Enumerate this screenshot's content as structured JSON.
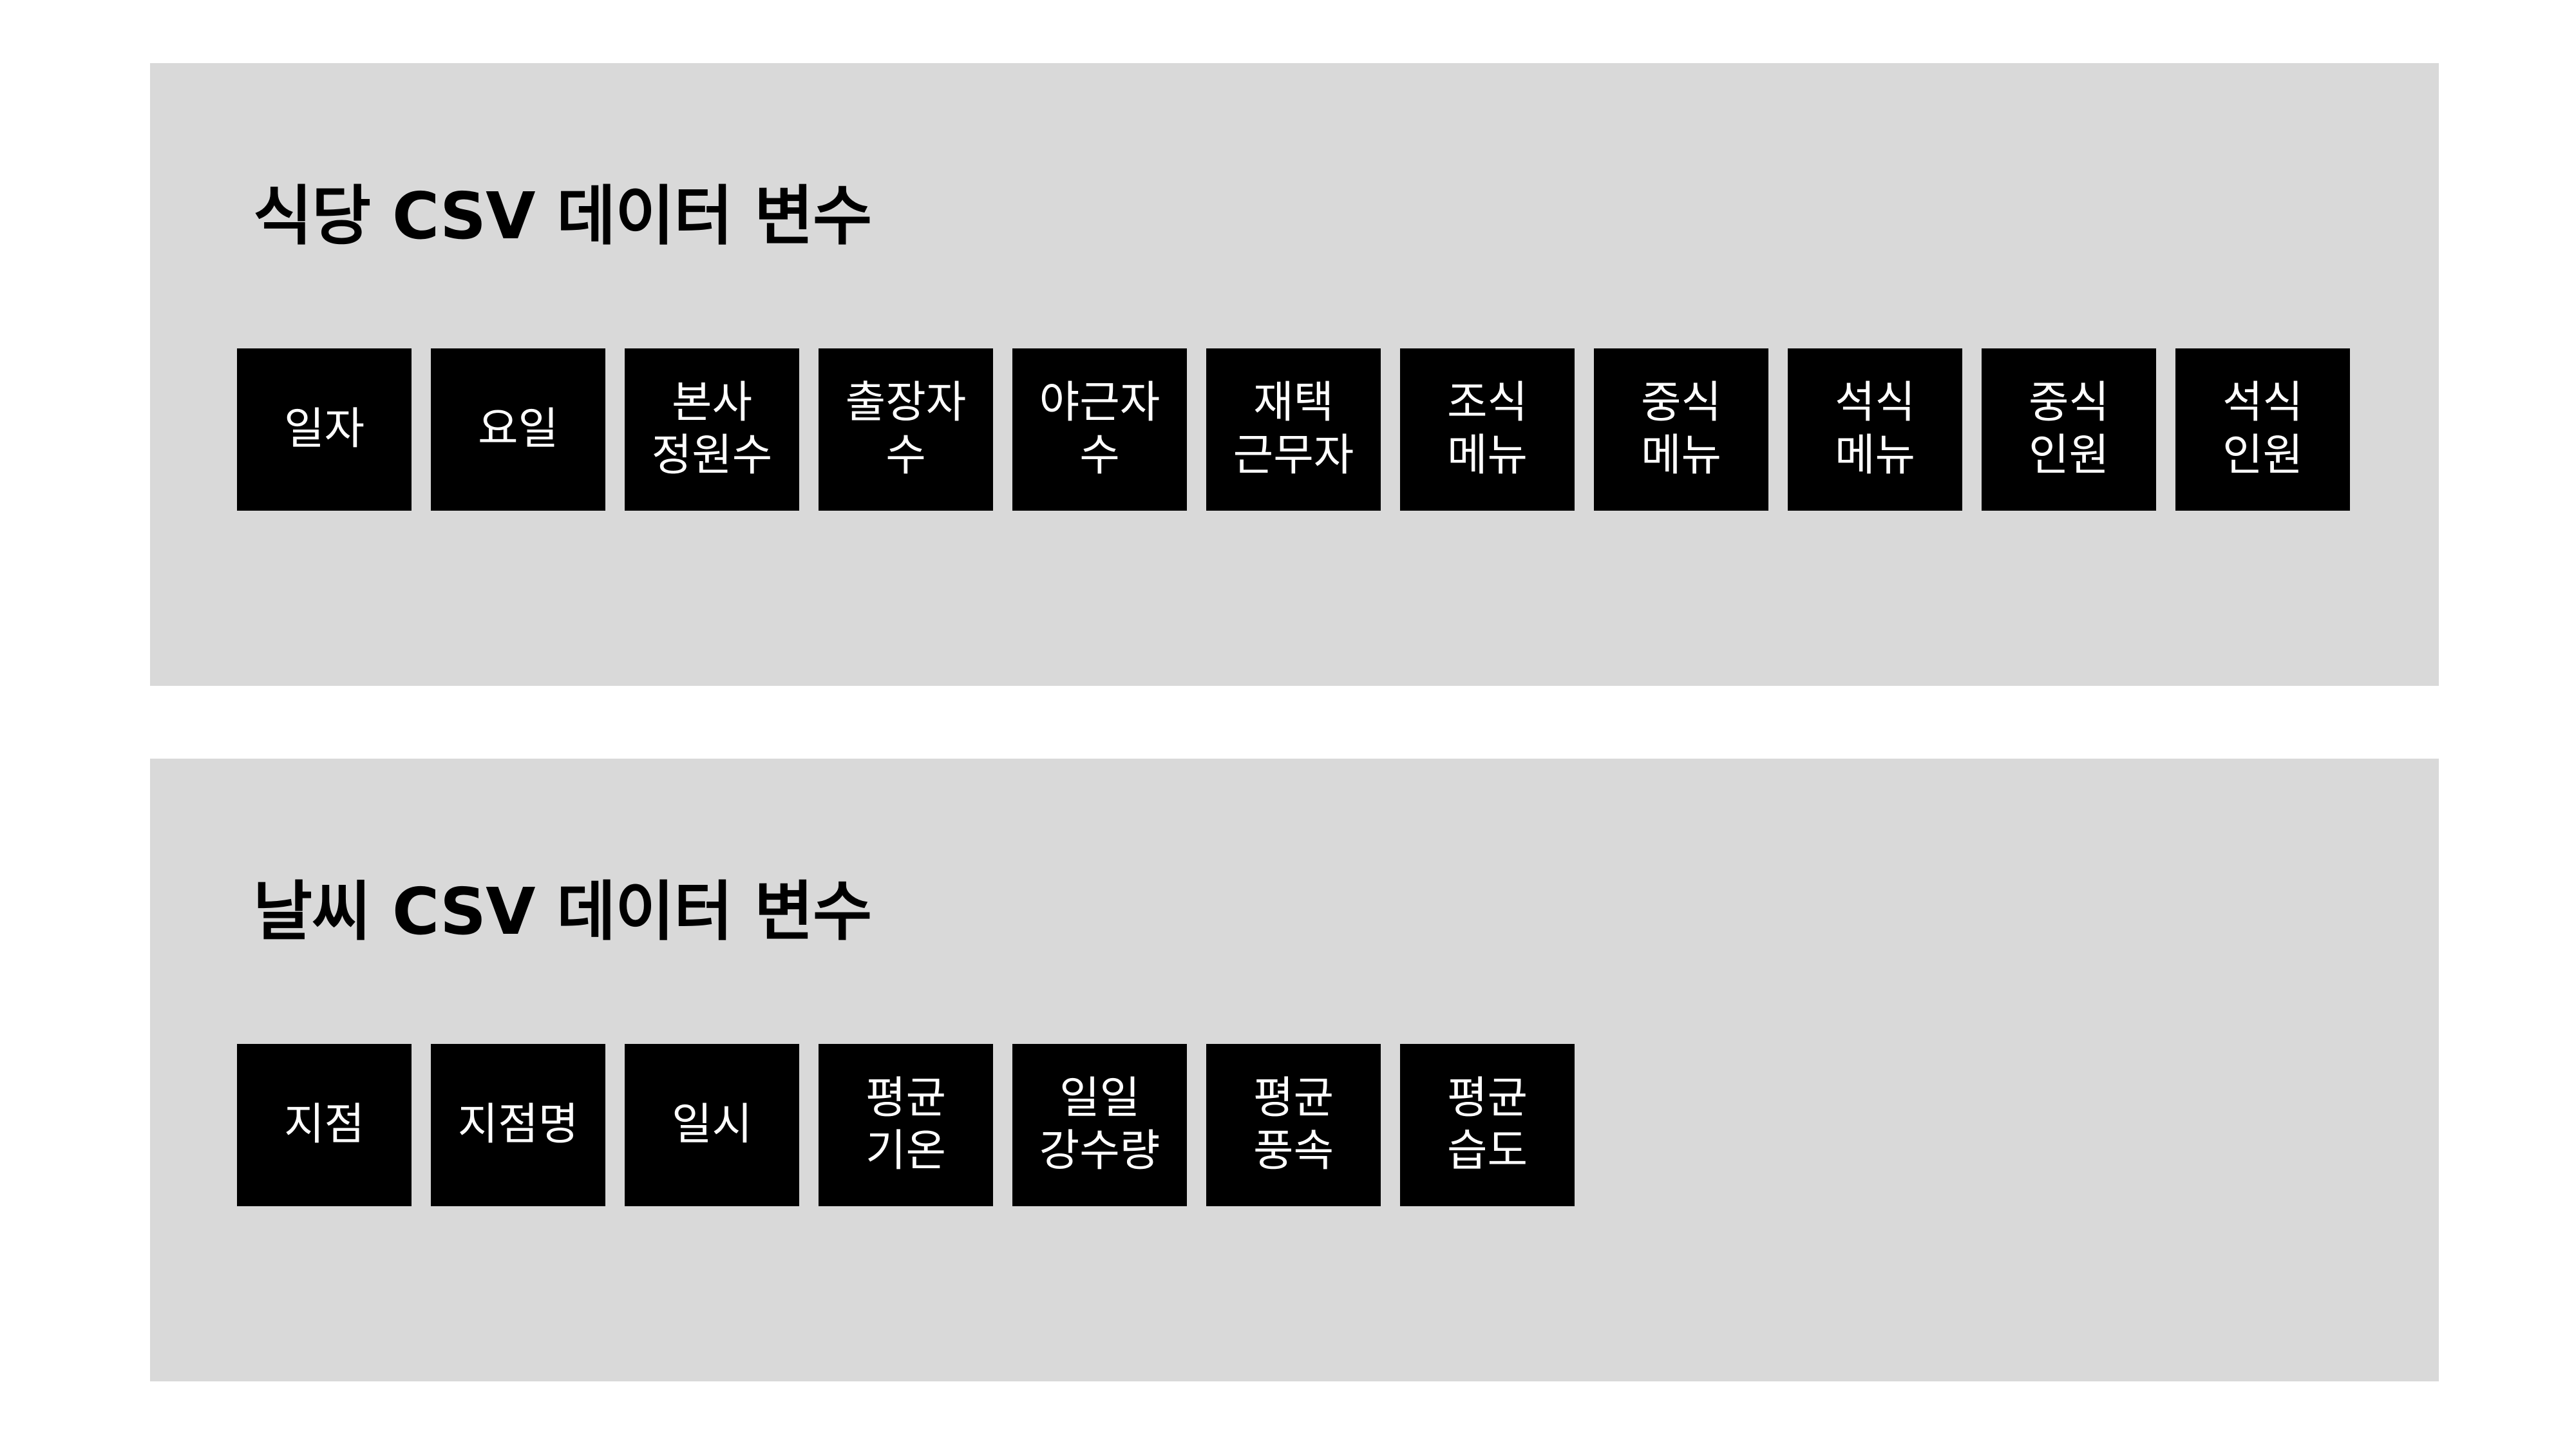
{
  "panels": [
    {
      "title": "식당 CSV 데이터 변수",
      "variables": [
        "일자",
        "요일",
        "본사\n정원수",
        "출장자\n수",
        "야근자\n수",
        "재택\n근무자",
        "조식\n메뉴",
        "중식\n메뉴",
        "석식\n메뉴",
        "중식\n인원",
        "석식\n인원"
      ]
    },
    {
      "title": "날씨 CSV 데이터 변수",
      "variables": [
        "지점",
        "지점명",
        "일시",
        "평균\n기온",
        "일일\n강수량",
        "평균\n풍속",
        "평균\n습도"
      ]
    }
  ],
  "colors": {
    "background": "#ffffff",
    "panel": "#d9d9d9",
    "tile": "#000000",
    "tile_text": "#ffffff",
    "title_text": "#000000"
  }
}
